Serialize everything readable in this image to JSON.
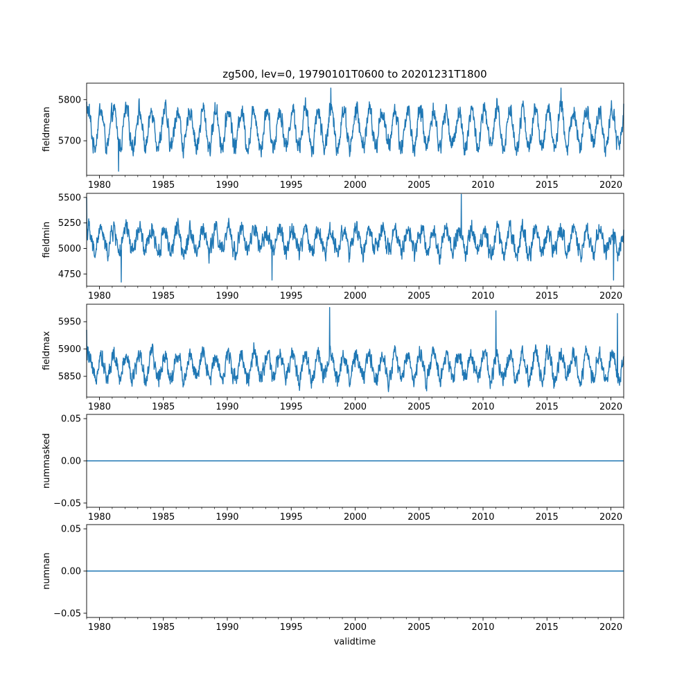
{
  "figure": {
    "title": "zg500, lev=0, 19790101T0600 to 20201231T1800",
    "xlabel": "validtime"
  },
  "chart_data": [
    {
      "type": "line",
      "ylabel": "fieldmean",
      "xlim": [
        1979.0,
        2021.0
      ],
      "ylim": [
        5616,
        5840
      ],
      "yticks": [
        5700,
        5800
      ],
      "xticks": [
        1980,
        1985,
        1990,
        1995,
        2000,
        2005,
        2010,
        2015,
        2020
      ],
      "color": "#1f77b4",
      "series": [
        {
          "mode": "seasonal-noise",
          "mean": 5730,
          "seasonal_amplitude": 45,
          "noise": 20,
          "range": [
            5626,
            5828
          ],
          "x": [
            1979.0,
            1981.5,
            1998.1,
            2016.1,
            2021.0
          ],
          "y": [
            5795,
            5626,
            5828,
            5828,
            5790
          ]
        }
      ]
    },
    {
      "type": "line",
      "ylabel": "fieldmin",
      "xlim": [
        1979.0,
        2021.0
      ],
      "ylim": [
        4630,
        5540
      ],
      "yticks": [
        4750,
        5000,
        5250,
        5500
      ],
      "xticks": [
        1980,
        1985,
        1990,
        1995,
        2000,
        2005,
        2010,
        2015,
        2020
      ],
      "color": "#1f77b4",
      "series": [
        {
          "mode": "seasonal-noise",
          "mean": 5080,
          "seasonal_amplitude": 110,
          "noise": 80,
          "range": [
            4670,
            5530
          ],
          "x": [
            1979.0,
            1981.7,
            1993.5,
            2008.3,
            2020.2
          ],
          "y": [
            5500,
            4670,
            4690,
            5530,
            4690
          ]
        }
      ]
    },
    {
      "type": "line",
      "ylabel": "fieldmax",
      "xlim": [
        1979.0,
        2021.0
      ],
      "ylim": [
        5812,
        5982
      ],
      "yticks": [
        5850,
        5900,
        5950
      ],
      "xticks": [
        1980,
        1985,
        1990,
        1995,
        2000,
        2005,
        2010,
        2015,
        2020
      ],
      "color": "#1f77b4",
      "series": [
        {
          "mode": "seasonal-noise",
          "mean": 5868,
          "seasonal_amplitude": 22,
          "noise": 14,
          "range": [
            5820,
            5976
          ],
          "x": [
            1979.0,
            1998.0,
            2011.0,
            2020.5
          ],
          "y": [
            5935,
            5976,
            5970,
            5965
          ]
        }
      ]
    },
    {
      "type": "line",
      "ylabel": "nummasked",
      "xlim": [
        1979.0,
        2021.0
      ],
      "ylim": [
        -0.055,
        0.055
      ],
      "yticks": [
        -0.05,
        0.0,
        0.05
      ],
      "yticklabels": [
        "−0.05",
        "0.00",
        "0.05"
      ],
      "xticks": [
        1980,
        1985,
        1990,
        1995,
        2000,
        2005,
        2010,
        2015,
        2020
      ],
      "color": "#1f77b4",
      "series": [
        {
          "mode": "constant",
          "x": [
            1979.0,
            2021.0
          ],
          "y": [
            0,
            0
          ]
        }
      ]
    },
    {
      "type": "line",
      "ylabel": "numnan",
      "xlim": [
        1979.0,
        2021.0
      ],
      "ylim": [
        -0.055,
        0.055
      ],
      "yticks": [
        -0.05,
        0.0,
        0.05
      ],
      "yticklabels": [
        "−0.05",
        "0.00",
        "0.05"
      ],
      "xticks": [
        1980,
        1985,
        1990,
        1995,
        2000,
        2005,
        2010,
        2015,
        2020
      ],
      "color": "#1f77b4",
      "series": [
        {
          "mode": "constant",
          "x": [
            1979.0,
            2021.0
          ],
          "y": [
            0,
            0
          ]
        }
      ]
    }
  ]
}
